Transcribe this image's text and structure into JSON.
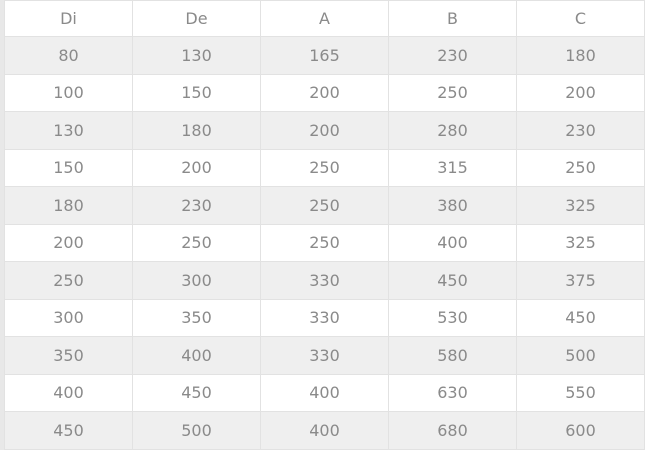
{
  "table": {
    "headers": [
      "Di",
      "De",
      "A",
      "B",
      "C"
    ],
    "rows": [
      [
        "80",
        "130",
        "165",
        "230",
        "180"
      ],
      [
        "100",
        "150",
        "200",
        "250",
        "200"
      ],
      [
        "130",
        "180",
        "200",
        "280",
        "230"
      ],
      [
        "150",
        "200",
        "250",
        "315",
        "250"
      ],
      [
        "180",
        "230",
        "250",
        "380",
        "325"
      ],
      [
        "200",
        "250",
        "250",
        "400",
        "325"
      ],
      [
        "250",
        "300",
        "330",
        "450",
        "375"
      ],
      [
        "300",
        "350",
        "330",
        "530",
        "450"
      ],
      [
        "350",
        "400",
        "330",
        "580",
        "500"
      ],
      [
        "400",
        "450",
        "400",
        "630",
        "550"
      ],
      [
        "450",
        "500",
        "400",
        "680",
        "600"
      ]
    ]
  }
}
